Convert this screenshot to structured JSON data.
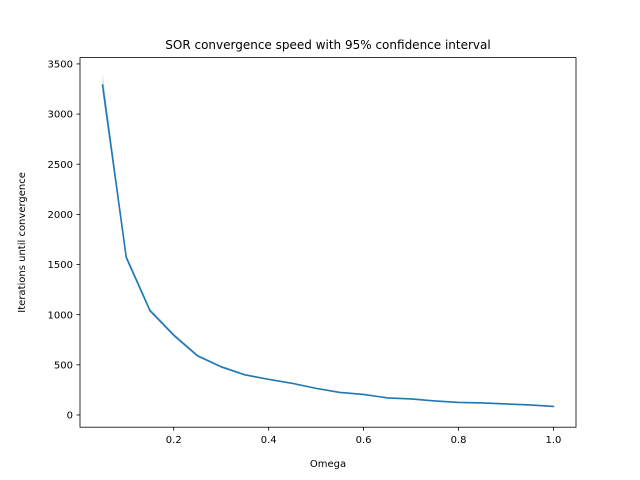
{
  "chart_data": {
    "type": "line",
    "title": "SOR convergence speed with 95% confidence interval",
    "xlabel": "Omega",
    "ylabel": "Iterations until convergence",
    "xlim": [
      0.0025,
      1.0475
    ],
    "ylim": [
      -122,
      3563
    ],
    "xticks": [
      0.2,
      0.4,
      0.6,
      0.8,
      1.0
    ],
    "xtick_labels": [
      "0.2",
      "0.4",
      "0.6",
      "0.8",
      "1.0"
    ],
    "yticks": [
      0,
      500,
      1000,
      1500,
      2000,
      2500,
      3000,
      3500
    ],
    "ytick_labels": [
      "0",
      "500",
      "1000",
      "1500",
      "2000",
      "2500",
      "3000",
      "3500"
    ],
    "grid": false,
    "colors": {
      "line": "#1f77b4",
      "band": "#1f77b4"
    },
    "series": [
      {
        "x": [
          0.05,
          0.1,
          0.15,
          0.2,
          0.25,
          0.3,
          0.35,
          0.4,
          0.45,
          0.5,
          0.55,
          0.6,
          0.65,
          0.7,
          0.75,
          0.8,
          0.85,
          0.9,
          0.95,
          1.0
        ],
        "y": [
          3290,
          1570,
          1040,
          795,
          590,
          480,
          400,
          355,
          315,
          265,
          225,
          205,
          170,
          160,
          140,
          125,
          120,
          110,
          100,
          85
        ],
        "lower": [
          3200,
          1545,
          1025,
          780,
          578,
          470,
          392,
          348,
          308,
          258,
          219,
          199,
          165,
          155,
          135,
          121,
          116,
          106,
          96,
          81
        ],
        "upper": [
          3410,
          1600,
          1065,
          815,
          605,
          492,
          410,
          363,
          323,
          273,
          232,
          212,
          176,
          166,
          146,
          130,
          125,
          115,
          105,
          90
        ]
      }
    ]
  }
}
